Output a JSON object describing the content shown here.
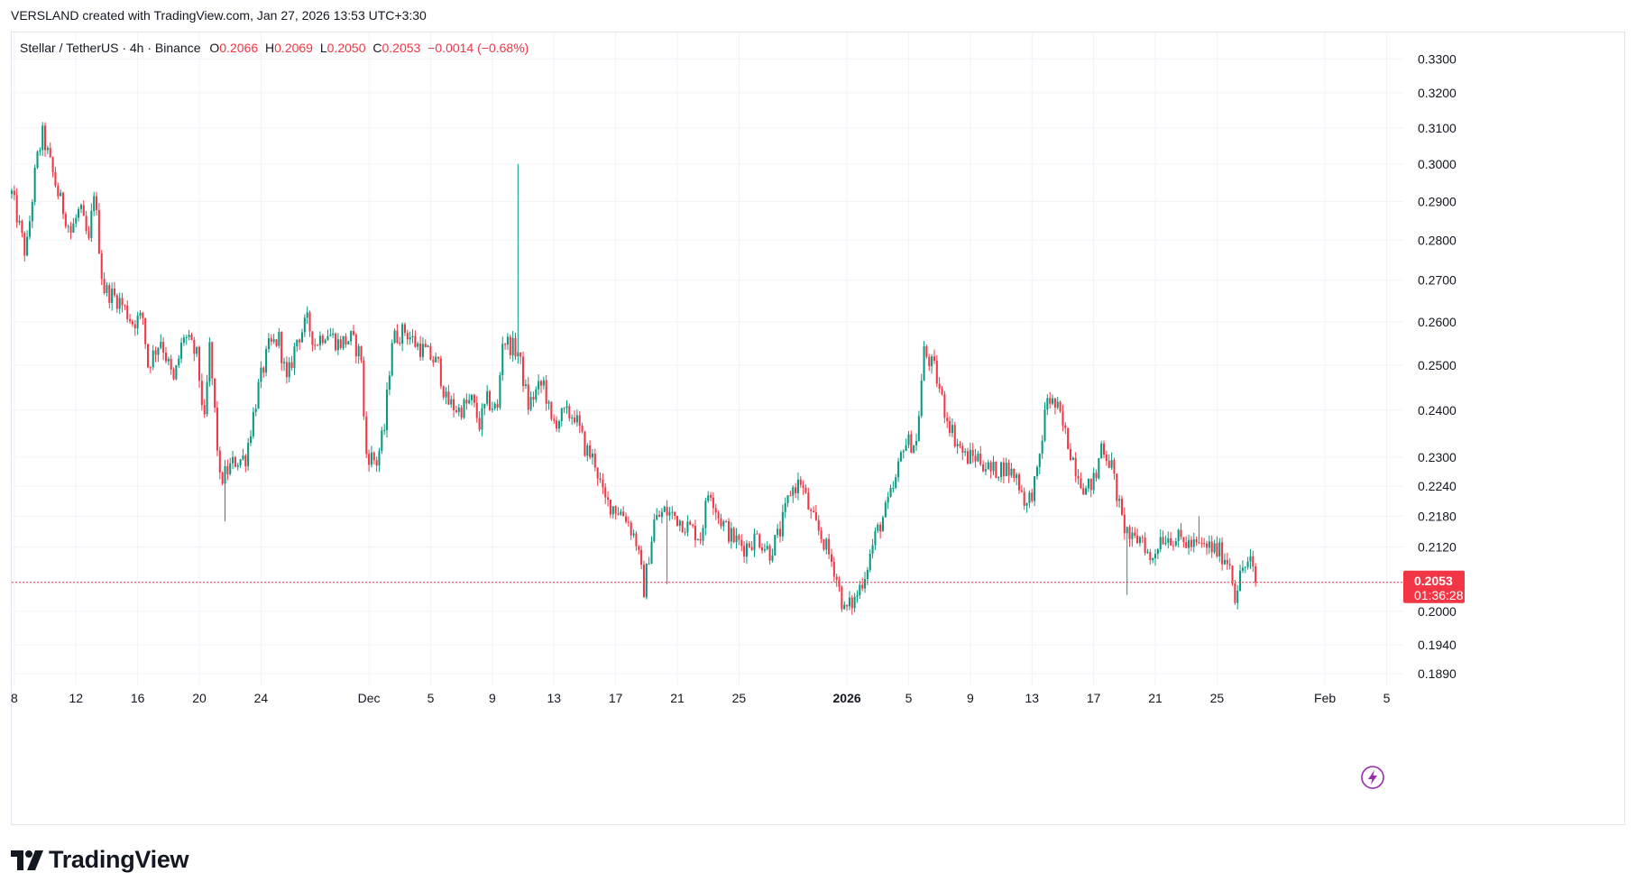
{
  "header": {
    "credit": "VERSLAND created with TradingView.com, Jan 27, 2026 13:53 UTC+3:30"
  },
  "legend": {
    "symbol": "Stellar / TetherUS · 4h · Binance",
    "o_label": "O",
    "o_value": "0.2066",
    "h_label": "H",
    "h_value": "0.2069",
    "l_label": "L",
    "l_value": "0.2050",
    "c_label": "C",
    "c_value": "0.2053",
    "change": "−0.0014 (−0.68%)"
  },
  "price_tag": {
    "price": "0.2053",
    "countdown": "01:36:28"
  },
  "footer": {
    "logo_text": "TradingView"
  },
  "colors": {
    "up": "#089981",
    "down": "#f23645",
    "grid": "#f0f3fa",
    "last_line": "#f23645"
  },
  "icons": {
    "flash": "lightning-bolt-icon",
    "logo": "tradingview-logo-icon"
  },
  "chart_data": {
    "type": "candlestick",
    "title": "Stellar / TetherUS · 4h · Binance",
    "scale": "log",
    "ylim": [
      0.187,
      0.338
    ],
    "grid": true,
    "y_ticks": [
      "0.3300",
      "0.3200",
      "0.3100",
      "0.3000",
      "0.2900",
      "0.2800",
      "0.2700",
      "0.2600",
      "0.2500",
      "0.2400",
      "0.2300",
      "0.2240",
      "0.2180",
      "0.2120",
      "0.2000",
      "0.1940",
      "0.1890"
    ],
    "x_ticks": [
      {
        "label": "8",
        "date": "2025-11-08",
        "bold": false
      },
      {
        "label": "12",
        "date": "2025-11-12",
        "bold": false
      },
      {
        "label": "16",
        "date": "2025-11-16",
        "bold": false
      },
      {
        "label": "20",
        "date": "2025-11-20",
        "bold": false
      },
      {
        "label": "24",
        "date": "2025-11-24",
        "bold": false
      },
      {
        "label": "Dec",
        "date": "2025-12-01",
        "bold": false
      },
      {
        "label": "5",
        "date": "2025-12-05",
        "bold": false
      },
      {
        "label": "9",
        "date": "2025-12-09",
        "bold": false
      },
      {
        "label": "13",
        "date": "2025-12-13",
        "bold": false
      },
      {
        "label": "17",
        "date": "2025-12-17",
        "bold": false
      },
      {
        "label": "21",
        "date": "2025-12-21",
        "bold": false
      },
      {
        "label": "25",
        "date": "2025-12-25",
        "bold": false
      },
      {
        "label": "2026",
        "date": "2026-01-01",
        "bold": true
      },
      {
        "label": "5",
        "date": "2026-01-05",
        "bold": false
      },
      {
        "label": "9",
        "date": "2026-01-09",
        "bold": false
      },
      {
        "label": "13",
        "date": "2026-01-13",
        "bold": false
      },
      {
        "label": "17",
        "date": "2026-01-17",
        "bold": false
      },
      {
        "label": "21",
        "date": "2026-01-21",
        "bold": false
      },
      {
        "label": "25",
        "date": "2026-01-25",
        "bold": false
      },
      {
        "label": "Feb",
        "date": "2026-02-01",
        "bold": false
      },
      {
        "label": "5",
        "date": "2026-02-05",
        "bold": false
      }
    ],
    "last_close": 0.2053,
    "x_range": [
      "2025-11-07 20:00",
      "2026-02-06 02:00"
    ],
    "anchors": [
      [
        "2025-11-07 20:00",
        0.292
      ],
      [
        "2025-11-08 18:00",
        0.276
      ],
      [
        "2025-11-09 10:00",
        0.3
      ],
      [
        "2025-11-09 20:00",
        0.308
      ],
      [
        "2025-11-10 20:00",
        0.292
      ],
      [
        "2025-11-11 16:00",
        0.282
      ],
      [
        "2025-11-12 06:00",
        0.288
      ],
      [
        "2025-11-12 20:00",
        0.279
      ],
      [
        "2025-11-13 04:00",
        0.293
      ],
      [
        "2025-11-13 18:00",
        0.268
      ],
      [
        "2025-11-14 20:00",
        0.265
      ],
      [
        "2025-11-15 16:00",
        0.26
      ],
      [
        "2025-11-16 08:00",
        0.261
      ],
      [
        "2025-11-16 16:00",
        0.25
      ],
      [
        "2025-11-17 12:00",
        0.256
      ],
      [
        "2025-11-18 08:00",
        0.246
      ],
      [
        "2025-11-19 00:00",
        0.257
      ],
      [
        "2025-11-19 20:00",
        0.252
      ],
      [
        "2025-11-20 08:00",
        0.237
      ],
      [
        "2025-11-20 16:00",
        0.254
      ],
      [
        "2025-11-21 08:00",
        0.225
      ],
      [
        "2025-11-22 06:00",
        0.229
      ],
      [
        "2025-11-23 00:00",
        0.23
      ],
      [
        "2025-11-23 20:00",
        0.245
      ],
      [
        "2025-11-24 12:00",
        0.254
      ],
      [
        "2025-11-25 04:00",
        0.256
      ],
      [
        "2025-11-25 16:00",
        0.246
      ],
      [
        "2025-11-26 08:00",
        0.256
      ],
      [
        "2025-11-27 00:00",
        0.26
      ],
      [
        "2025-11-27 12:00",
        0.255
      ],
      [
        "2025-11-28 06:00",
        0.258
      ],
      [
        "2025-11-29 00:00",
        0.255
      ],
      [
        "2025-11-29 20:00",
        0.256
      ],
      [
        "2025-11-30 12:00",
        0.252
      ],
      [
        "2025-11-30 18:00",
        0.231
      ],
      [
        "2025-12-01 12:00",
        0.229
      ],
      [
        "2025-12-02 00:00",
        0.236
      ],
      [
        "2025-12-02 12:00",
        0.256
      ],
      [
        "2025-12-03 08:00",
        0.258
      ],
      [
        "2025-12-04 00:00",
        0.255
      ],
      [
        "2025-12-04 16:00",
        0.253
      ],
      [
        "2025-12-05 12:00",
        0.25
      ],
      [
        "2025-12-06 00:00",
        0.242
      ],
      [
        "2025-12-06 20:00",
        0.24
      ],
      [
        "2025-12-07 16:00",
        0.242
      ],
      [
        "2025-12-08 04:00",
        0.237
      ],
      [
        "2025-12-08 16:00",
        0.242
      ],
      [
        "2025-12-09 08:00",
        0.24
      ],
      [
        "2025-12-09 16:00",
        0.256
      ],
      [
        "2025-12-10 16:00",
        0.253
      ],
      [
        "2025-12-11 08:00",
        0.241
      ],
      [
        "2025-12-11 20:00",
        0.244
      ],
      [
        "2025-12-12 08:00",
        0.246
      ],
      [
        "2025-12-12 20:00",
        0.237
      ],
      [
        "2025-12-13 16:00",
        0.239
      ],
      [
        "2025-12-14 08:00",
        0.239
      ],
      [
        "2025-12-15 00:00",
        0.232
      ],
      [
        "2025-12-15 16:00",
        0.229
      ],
      [
        "2025-12-16 06:00",
        0.221
      ],
      [
        "2025-12-16 20:00",
        0.22
      ],
      [
        "2025-12-17 16:00",
        0.218
      ],
      [
        "2025-12-18 08:00",
        0.213
      ],
      [
        "2025-12-18 20:00",
        0.204
      ],
      [
        "2025-12-19 12:00",
        0.217
      ],
      [
        "2025-12-20 04:00",
        0.219
      ],
      [
        "2025-12-20 20:00",
        0.218
      ],
      [
        "2025-12-21 16:00",
        0.216
      ],
      [
        "2025-12-22 12:00",
        0.214
      ],
      [
        "2025-12-23 02:00",
        0.224
      ],
      [
        "2025-12-23 16:00",
        0.218
      ],
      [
        "2025-12-24 12:00",
        0.214
      ],
      [
        "2025-12-25 08:00",
        0.212
      ],
      [
        "2025-12-26 04:00",
        0.214
      ],
      [
        "2025-12-27 00:00",
        0.211
      ],
      [
        "2025-12-27 16:00",
        0.215
      ],
      [
        "2025-12-28 08:00",
        0.223
      ],
      [
        "2025-12-29 00:00",
        0.225
      ],
      [
        "2025-12-29 16:00",
        0.218
      ],
      [
        "2025-12-30 12:00",
        0.213
      ],
      [
        "2025-12-31 04:00",
        0.208
      ],
      [
        "2025-12-31 20:00",
        0.2
      ],
      [
        "2026-01-01 12:00",
        0.202
      ],
      [
        "2026-01-02 04:00",
        0.207
      ],
      [
        "2026-01-02 20:00",
        0.214
      ],
      [
        "2026-01-03 12:00",
        0.219
      ],
      [
        "2026-01-04 04:00",
        0.225
      ],
      [
        "2026-01-04 16:00",
        0.233
      ],
      [
        "2026-01-05 12:00",
        0.233
      ],
      [
        "2026-01-06 00:00",
        0.253
      ],
      [
        "2026-01-06 16:00",
        0.249
      ],
      [
        "2026-01-07 08:00",
        0.24
      ],
      [
        "2026-01-08 00:00",
        0.234
      ],
      [
        "2026-01-08 16:00",
        0.23
      ],
      [
        "2026-01-09 12:00",
        0.23
      ],
      [
        "2026-01-10 08:00",
        0.227
      ],
      [
        "2026-01-11 04:00",
        0.228
      ],
      [
        "2026-01-12 00:00",
        0.226
      ],
      [
        "2026-01-12 16:00",
        0.22
      ],
      [
        "2026-01-13 08:00",
        0.226
      ],
      [
        "2026-01-14 00:00",
        0.243
      ],
      [
        "2026-01-14 16:00",
        0.24
      ],
      [
        "2026-01-15 08:00",
        0.233
      ],
      [
        "2026-01-15 20:00",
        0.228
      ],
      [
        "2026-01-16 12:00",
        0.223
      ],
      [
        "2026-01-17 04:00",
        0.226
      ],
      [
        "2026-01-17 12:00",
        0.233
      ],
      [
        "2026-01-18 04:00",
        0.228
      ],
      [
        "2026-01-18 20:00",
        0.217
      ],
      [
        "2026-01-19 12:00",
        0.213
      ],
      [
        "2026-01-20 04:00",
        0.214
      ],
      [
        "2026-01-20 16:00",
        0.209
      ],
      [
        "2026-01-21 08:00",
        0.214
      ],
      [
        "2026-01-22 00:00",
        0.214
      ],
      [
        "2026-01-22 20:00",
        0.213
      ],
      [
        "2026-01-23 16:00",
        0.212
      ],
      [
        "2026-01-24 12:00",
        0.212
      ],
      [
        "2026-01-25 04:00",
        0.211
      ],
      [
        "2026-01-25 20:00",
        0.209
      ],
      [
        "2026-01-26 04:00",
        0.203
      ],
      [
        "2026-01-26 16:00",
        0.208
      ],
      [
        "2026-01-27 04:00",
        0.209
      ],
      [
        "2026-01-27 12:00",
        0.2053
      ]
    ],
    "wick_events": [
      [
        "2025-12-10 16:00",
        "high",
        0.3
      ],
      [
        "2025-12-20 08:00",
        "low",
        0.205
      ],
      [
        "2026-01-19 04:00",
        "low",
        0.203
      ],
      [
        "2026-01-23 20:00",
        "high",
        0.218
      ],
      [
        "2025-11-21 16:00",
        "low",
        0.217
      ]
    ]
  }
}
